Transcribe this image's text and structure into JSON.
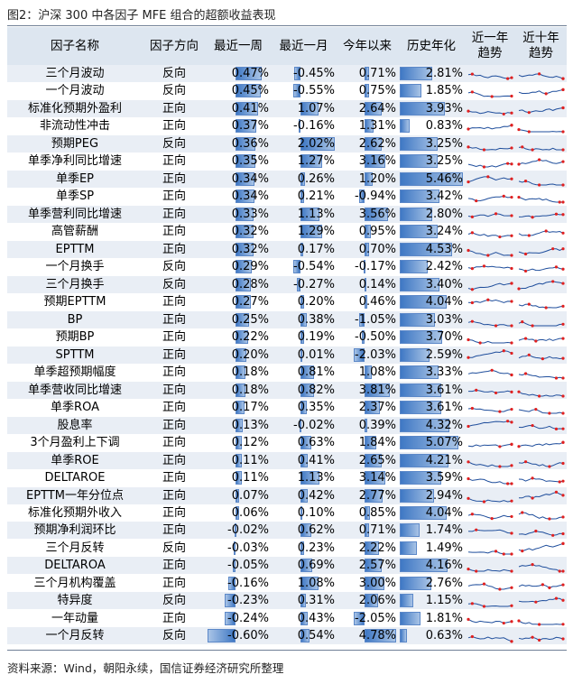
{
  "title": "图2：沪深 300 中各因子 MFE 组合的超额收益表现",
  "source": "资料来源：Wind，朝阳永续，国信证券经济研究所整理",
  "headers": {
    "name": "因子名称",
    "direction": "因子方向",
    "w1": "最近一周",
    "m1": "最近一月",
    "ytd": "今年以来",
    "hist": "历史年化",
    "y1": "近一年\n趋势",
    "y10": "近十年\n趋势"
  },
  "colors": {
    "header_bg": "#dde6f0",
    "row_alt": "#e9eef5",
    "bar": "#3f78c4",
    "spark_line": "#1f4e9c",
    "spark_dot": "#e02020"
  },
  "rows": [
    {
      "name": "三个月波动",
      "direction": "反向",
      "w1": "0.47%",
      "m1": "-0.45%",
      "ytd": "0.71%",
      "hist": "2.81%",
      "v": [
        0.47,
        -0.45,
        0.71,
        2.81
      ]
    },
    {
      "name": "一个月波动",
      "direction": "反向",
      "w1": "0.45%",
      "m1": "-0.55%",
      "ytd": "0.75%",
      "hist": "1.85%",
      "v": [
        0.45,
        -0.55,
        0.75,
        1.85
      ]
    },
    {
      "name": "标准化预期外盈利",
      "direction": "正向",
      "w1": "0.41%",
      "m1": "1.07%",
      "ytd": "2.64%",
      "hist": "3.93%",
      "v": [
        0.41,
        1.07,
        2.64,
        3.93
      ]
    },
    {
      "name": "非流动性冲击",
      "direction": "正向",
      "w1": "0.37%",
      "m1": "-0.16%",
      "ytd": "1.31%",
      "hist": "0.83%",
      "v": [
        0.37,
        -0.16,
        1.31,
        0.83
      ]
    },
    {
      "name": "预期PEG",
      "direction": "反向",
      "w1": "0.36%",
      "m1": "2.02%",
      "ytd": "2.62%",
      "hist": "3.25%",
      "v": [
        0.36,
        2.02,
        2.62,
        3.25
      ]
    },
    {
      "name": "单季净利同比增速",
      "direction": "正向",
      "w1": "0.35%",
      "m1": "1.27%",
      "ytd": "3.16%",
      "hist": "3.25%",
      "v": [
        0.35,
        1.27,
        3.16,
        3.25
      ]
    },
    {
      "name": "单季EP",
      "direction": "正向",
      "w1": "0.34%",
      "m1": "0.26%",
      "ytd": "1.20%",
      "hist": "5.46%",
      "v": [
        0.34,
        0.26,
        1.2,
        5.46
      ]
    },
    {
      "name": "单季SP",
      "direction": "正向",
      "w1": "0.34%",
      "m1": "0.21%",
      "ytd": "-0.94%",
      "hist": "3.42%",
      "v": [
        0.34,
        0.21,
        -0.94,
        3.42
      ]
    },
    {
      "name": "单季营利同比增速",
      "direction": "正向",
      "w1": "0.33%",
      "m1": "1.13%",
      "ytd": "3.56%",
      "hist": "2.80%",
      "v": [
        0.33,
        1.13,
        3.56,
        2.8
      ]
    },
    {
      "name": "高管薪酬",
      "direction": "正向",
      "w1": "0.32%",
      "m1": "1.29%",
      "ytd": "0.95%",
      "hist": "3.24%",
      "v": [
        0.32,
        1.29,
        0.95,
        3.24
      ]
    },
    {
      "name": "EPTTM",
      "direction": "正向",
      "w1": "0.32%",
      "m1": "0.17%",
      "ytd": "0.70%",
      "hist": "4.53%",
      "v": [
        0.32,
        0.17,
        0.7,
        4.53
      ]
    },
    {
      "name": "一个月换手",
      "direction": "反向",
      "w1": "0.29%",
      "m1": "-0.54%",
      "ytd": "-0.17%",
      "hist": "2.42%",
      "v": [
        0.29,
        -0.54,
        -0.17,
        2.42
      ]
    },
    {
      "name": "三个月换手",
      "direction": "反向",
      "w1": "0.28%",
      "m1": "-0.27%",
      "ytd": "0.14%",
      "hist": "3.40%",
      "v": [
        0.28,
        -0.27,
        0.14,
        3.4
      ]
    },
    {
      "name": "预期EPTTM",
      "direction": "正向",
      "w1": "0.27%",
      "m1": "0.20%",
      "ytd": "0.46%",
      "hist": "4.04%",
      "v": [
        0.27,
        0.2,
        0.46,
        4.04
      ]
    },
    {
      "name": "BP",
      "direction": "正向",
      "w1": "0.25%",
      "m1": "0.38%",
      "ytd": "-1.05%",
      "hist": "3.03%",
      "v": [
        0.25,
        0.38,
        -1.05,
        3.03
      ]
    },
    {
      "name": "预期BP",
      "direction": "正向",
      "w1": "0.22%",
      "m1": "0.19%",
      "ytd": "-0.50%",
      "hist": "3.70%",
      "v": [
        0.22,
        0.19,
        -0.5,
        3.7
      ]
    },
    {
      "name": "SPTTM",
      "direction": "正向",
      "w1": "0.20%",
      "m1": "0.01%",
      "ytd": "-2.03%",
      "hist": "2.59%",
      "v": [
        0.2,
        0.01,
        -2.03,
        2.59
      ]
    },
    {
      "name": "单季超预期幅度",
      "direction": "正向",
      "w1": "0.18%",
      "m1": "0.81%",
      "ytd": "1.08%",
      "hist": "3.33%",
      "v": [
        0.18,
        0.81,
        1.08,
        3.33
      ]
    },
    {
      "name": "单季营收同比增速",
      "direction": "正向",
      "w1": "0.18%",
      "m1": "0.82%",
      "ytd": "3.81%",
      "hist": "3.61%",
      "v": [
        0.18,
        0.82,
        3.81,
        3.61
      ]
    },
    {
      "name": "单季ROA",
      "direction": "正向",
      "w1": "0.17%",
      "m1": "0.35%",
      "ytd": "2.37%",
      "hist": "3.61%",
      "v": [
        0.17,
        0.35,
        2.37,
        3.61
      ]
    },
    {
      "name": "股息率",
      "direction": "正向",
      "w1": "0.13%",
      "m1": "-0.02%",
      "ytd": "0.39%",
      "hist": "4.32%",
      "v": [
        0.13,
        -0.02,
        0.39,
        4.32
      ]
    },
    {
      "name": "3个月盈利上下调",
      "direction": "正向",
      "w1": "0.12%",
      "m1": "0.63%",
      "ytd": "1.84%",
      "hist": "5.07%",
      "v": [
        0.12,
        0.63,
        1.84,
        5.07
      ]
    },
    {
      "name": "单季ROE",
      "direction": "正向",
      "w1": "0.11%",
      "m1": "0.41%",
      "ytd": "2.65%",
      "hist": "4.21%",
      "v": [
        0.11,
        0.41,
        2.65,
        4.21
      ]
    },
    {
      "name": "DELTAROE",
      "direction": "正向",
      "w1": "0.11%",
      "m1": "1.13%",
      "ytd": "3.14%",
      "hist": "3.59%",
      "v": [
        0.11,
        1.13,
        3.14,
        3.59
      ]
    },
    {
      "name": "EPTTM一年分位点",
      "direction": "正向",
      "w1": "0.07%",
      "m1": "0.42%",
      "ytd": "2.77%",
      "hist": "2.94%",
      "v": [
        0.07,
        0.42,
        2.77,
        2.94
      ]
    },
    {
      "name": "标准化预期外收入",
      "direction": "正向",
      "w1": "0.06%",
      "m1": "0.10%",
      "ytd": "0.85%",
      "hist": "4.04%",
      "v": [
        0.06,
        0.1,
        0.85,
        4.04
      ]
    },
    {
      "name": "预期净利润环比",
      "direction": "正向",
      "w1": "-0.02%",
      "m1": "0.62%",
      "ytd": "0.71%",
      "hist": "1.74%",
      "v": [
        -0.02,
        0.62,
        0.71,
        1.74
      ]
    },
    {
      "name": "三个月反转",
      "direction": "反向",
      "w1": "-0.03%",
      "m1": "0.23%",
      "ytd": "2.22%",
      "hist": "1.49%",
      "v": [
        -0.03,
        0.23,
        2.22,
        1.49
      ]
    },
    {
      "name": "DELTAROA",
      "direction": "正向",
      "w1": "-0.05%",
      "m1": "0.69%",
      "ytd": "2.57%",
      "hist": "4.16%",
      "v": [
        -0.05,
        0.69,
        2.57,
        4.16
      ]
    },
    {
      "name": "三个月机构覆盖",
      "direction": "正向",
      "w1": "-0.16%",
      "m1": "1.08%",
      "ytd": "3.00%",
      "hist": "2.76%",
      "v": [
        -0.16,
        1.08,
        3.0,
        2.76
      ]
    },
    {
      "name": "特异度",
      "direction": "反向",
      "w1": "-0.23%",
      "m1": "0.31%",
      "ytd": "2.06%",
      "hist": "1.15%",
      "v": [
        -0.23,
        0.31,
        2.06,
        1.15
      ]
    },
    {
      "name": "一年动量",
      "direction": "正向",
      "w1": "-0.24%",
      "m1": "0.43%",
      "ytd": "-2.05%",
      "hist": "1.81%",
      "v": [
        -0.24,
        0.43,
        -2.05,
        1.81
      ]
    },
    {
      "name": "一个月反转",
      "direction": "反向",
      "w1": "-0.60%",
      "m1": "0.54%",
      "ytd": "4.78%",
      "hist": "0.63%",
      "v": [
        -0.6,
        0.54,
        4.78,
        0.63
      ]
    }
  ]
}
